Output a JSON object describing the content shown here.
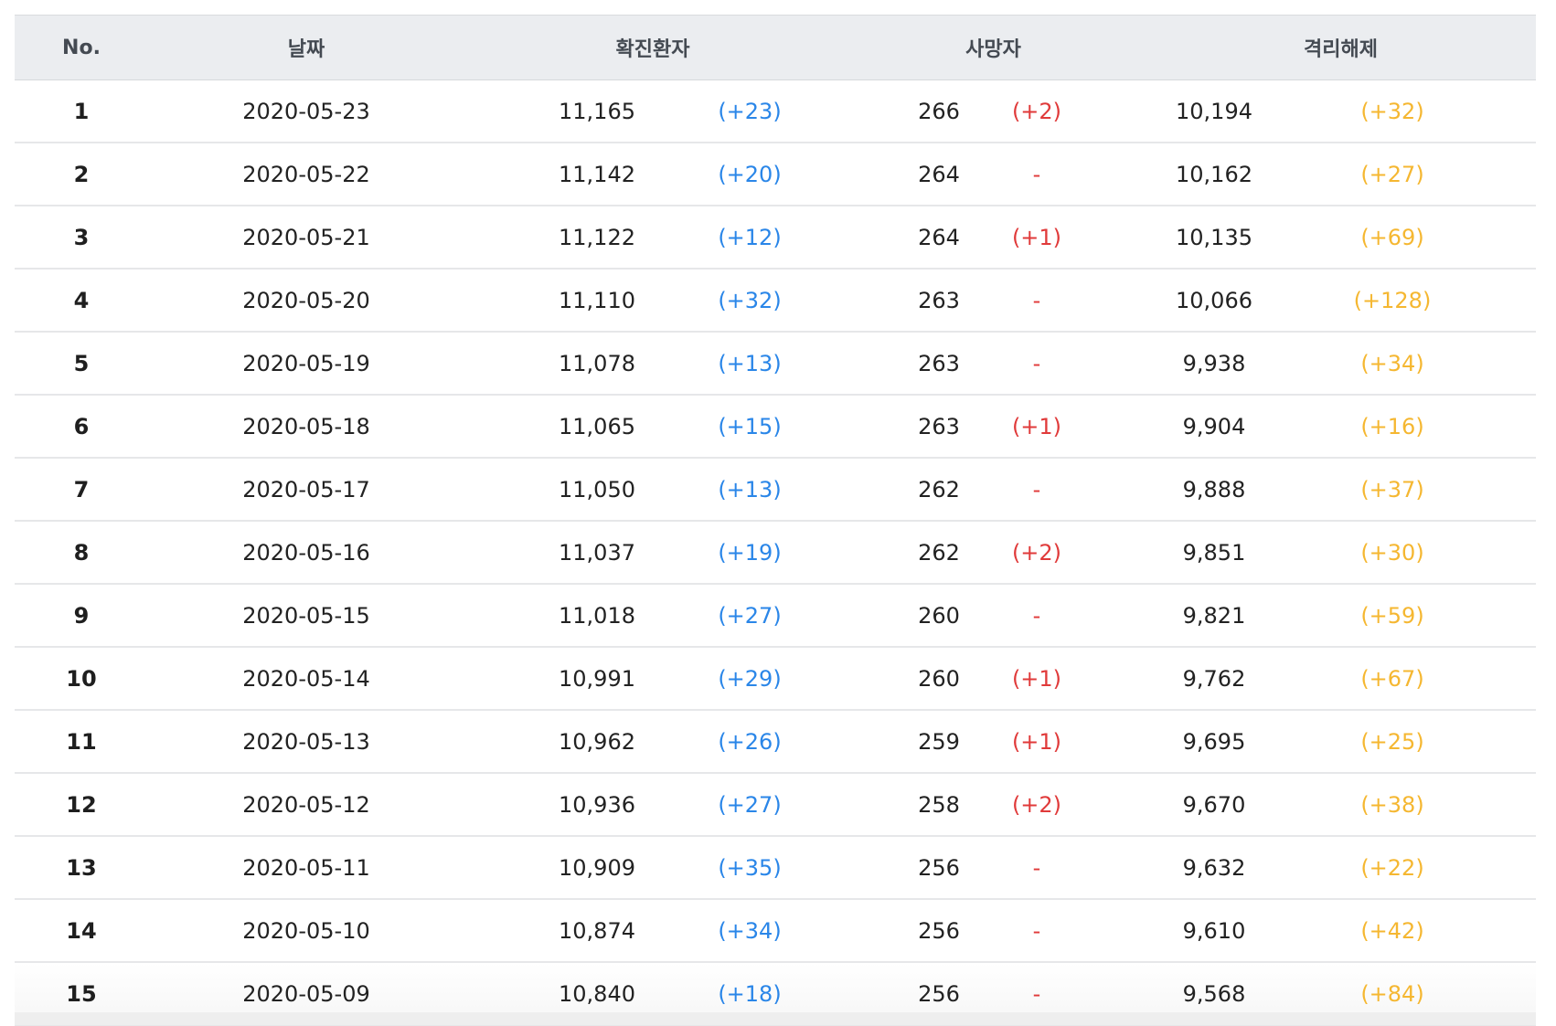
{
  "header": {
    "no": "No.",
    "date": "날짜",
    "confirmed": "확진환자",
    "deaths": "사망자",
    "released": "격리해제"
  },
  "colors": {
    "confirmed_delta": "#2a86e8",
    "deaths_delta": "#e03a3a",
    "released_delta": "#f5b731",
    "header_bg": "#ebedf0"
  },
  "rows": [
    {
      "no": "1",
      "date": "2020-05-23",
      "confirmed": "11,165",
      "confirmed_delta": "(+23)",
      "deaths": "266",
      "deaths_delta": "(+2)",
      "released": "10,194",
      "released_delta": "(+32)"
    },
    {
      "no": "2",
      "date": "2020-05-22",
      "confirmed": "11,142",
      "confirmed_delta": "(+20)",
      "deaths": "264",
      "deaths_delta": "-",
      "released": "10,162",
      "released_delta": "(+27)"
    },
    {
      "no": "3",
      "date": "2020-05-21",
      "confirmed": "11,122",
      "confirmed_delta": "(+12)",
      "deaths": "264",
      "deaths_delta": "(+1)",
      "released": "10,135",
      "released_delta": "(+69)"
    },
    {
      "no": "4",
      "date": "2020-05-20",
      "confirmed": "11,110",
      "confirmed_delta": "(+32)",
      "deaths": "263",
      "deaths_delta": "-",
      "released": "10,066",
      "released_delta": "(+128)"
    },
    {
      "no": "5",
      "date": "2020-05-19",
      "confirmed": "11,078",
      "confirmed_delta": "(+13)",
      "deaths": "263",
      "deaths_delta": "-",
      "released": "9,938",
      "released_delta": "(+34)"
    },
    {
      "no": "6",
      "date": "2020-05-18",
      "confirmed": "11,065",
      "confirmed_delta": "(+15)",
      "deaths": "263",
      "deaths_delta": "(+1)",
      "released": "9,904",
      "released_delta": "(+16)"
    },
    {
      "no": "7",
      "date": "2020-05-17",
      "confirmed": "11,050",
      "confirmed_delta": "(+13)",
      "deaths": "262",
      "deaths_delta": "-",
      "released": "9,888",
      "released_delta": "(+37)"
    },
    {
      "no": "8",
      "date": "2020-05-16",
      "confirmed": "11,037",
      "confirmed_delta": "(+19)",
      "deaths": "262",
      "deaths_delta": "(+2)",
      "released": "9,851",
      "released_delta": "(+30)"
    },
    {
      "no": "9",
      "date": "2020-05-15",
      "confirmed": "11,018",
      "confirmed_delta": "(+27)",
      "deaths": "260",
      "deaths_delta": "-",
      "released": "9,821",
      "released_delta": "(+59)"
    },
    {
      "no": "10",
      "date": "2020-05-14",
      "confirmed": "10,991",
      "confirmed_delta": "(+29)",
      "deaths": "260",
      "deaths_delta": "(+1)",
      "released": "9,762",
      "released_delta": "(+67)"
    },
    {
      "no": "11",
      "date": "2020-05-13",
      "confirmed": "10,962",
      "confirmed_delta": "(+26)",
      "deaths": "259",
      "deaths_delta": "(+1)",
      "released": "9,695",
      "released_delta": "(+25)"
    },
    {
      "no": "12",
      "date": "2020-05-12",
      "confirmed": "10,936",
      "confirmed_delta": "(+27)",
      "deaths": "258",
      "deaths_delta": "(+2)",
      "released": "9,670",
      "released_delta": "(+38)"
    },
    {
      "no": "13",
      "date": "2020-05-11",
      "confirmed": "10,909",
      "confirmed_delta": "(+35)",
      "deaths": "256",
      "deaths_delta": "-",
      "released": "9,632",
      "released_delta": "(+22)"
    },
    {
      "no": "14",
      "date": "2020-05-10",
      "confirmed": "10,874",
      "confirmed_delta": "(+34)",
      "deaths": "256",
      "deaths_delta": "-",
      "released": "9,610",
      "released_delta": "(+42)"
    },
    {
      "no": "15",
      "date": "2020-05-09",
      "confirmed": "10,840",
      "confirmed_delta": "(+18)",
      "deaths": "256",
      "deaths_delta": "-",
      "released": "9,568",
      "released_delta": "(+84)"
    }
  ]
}
